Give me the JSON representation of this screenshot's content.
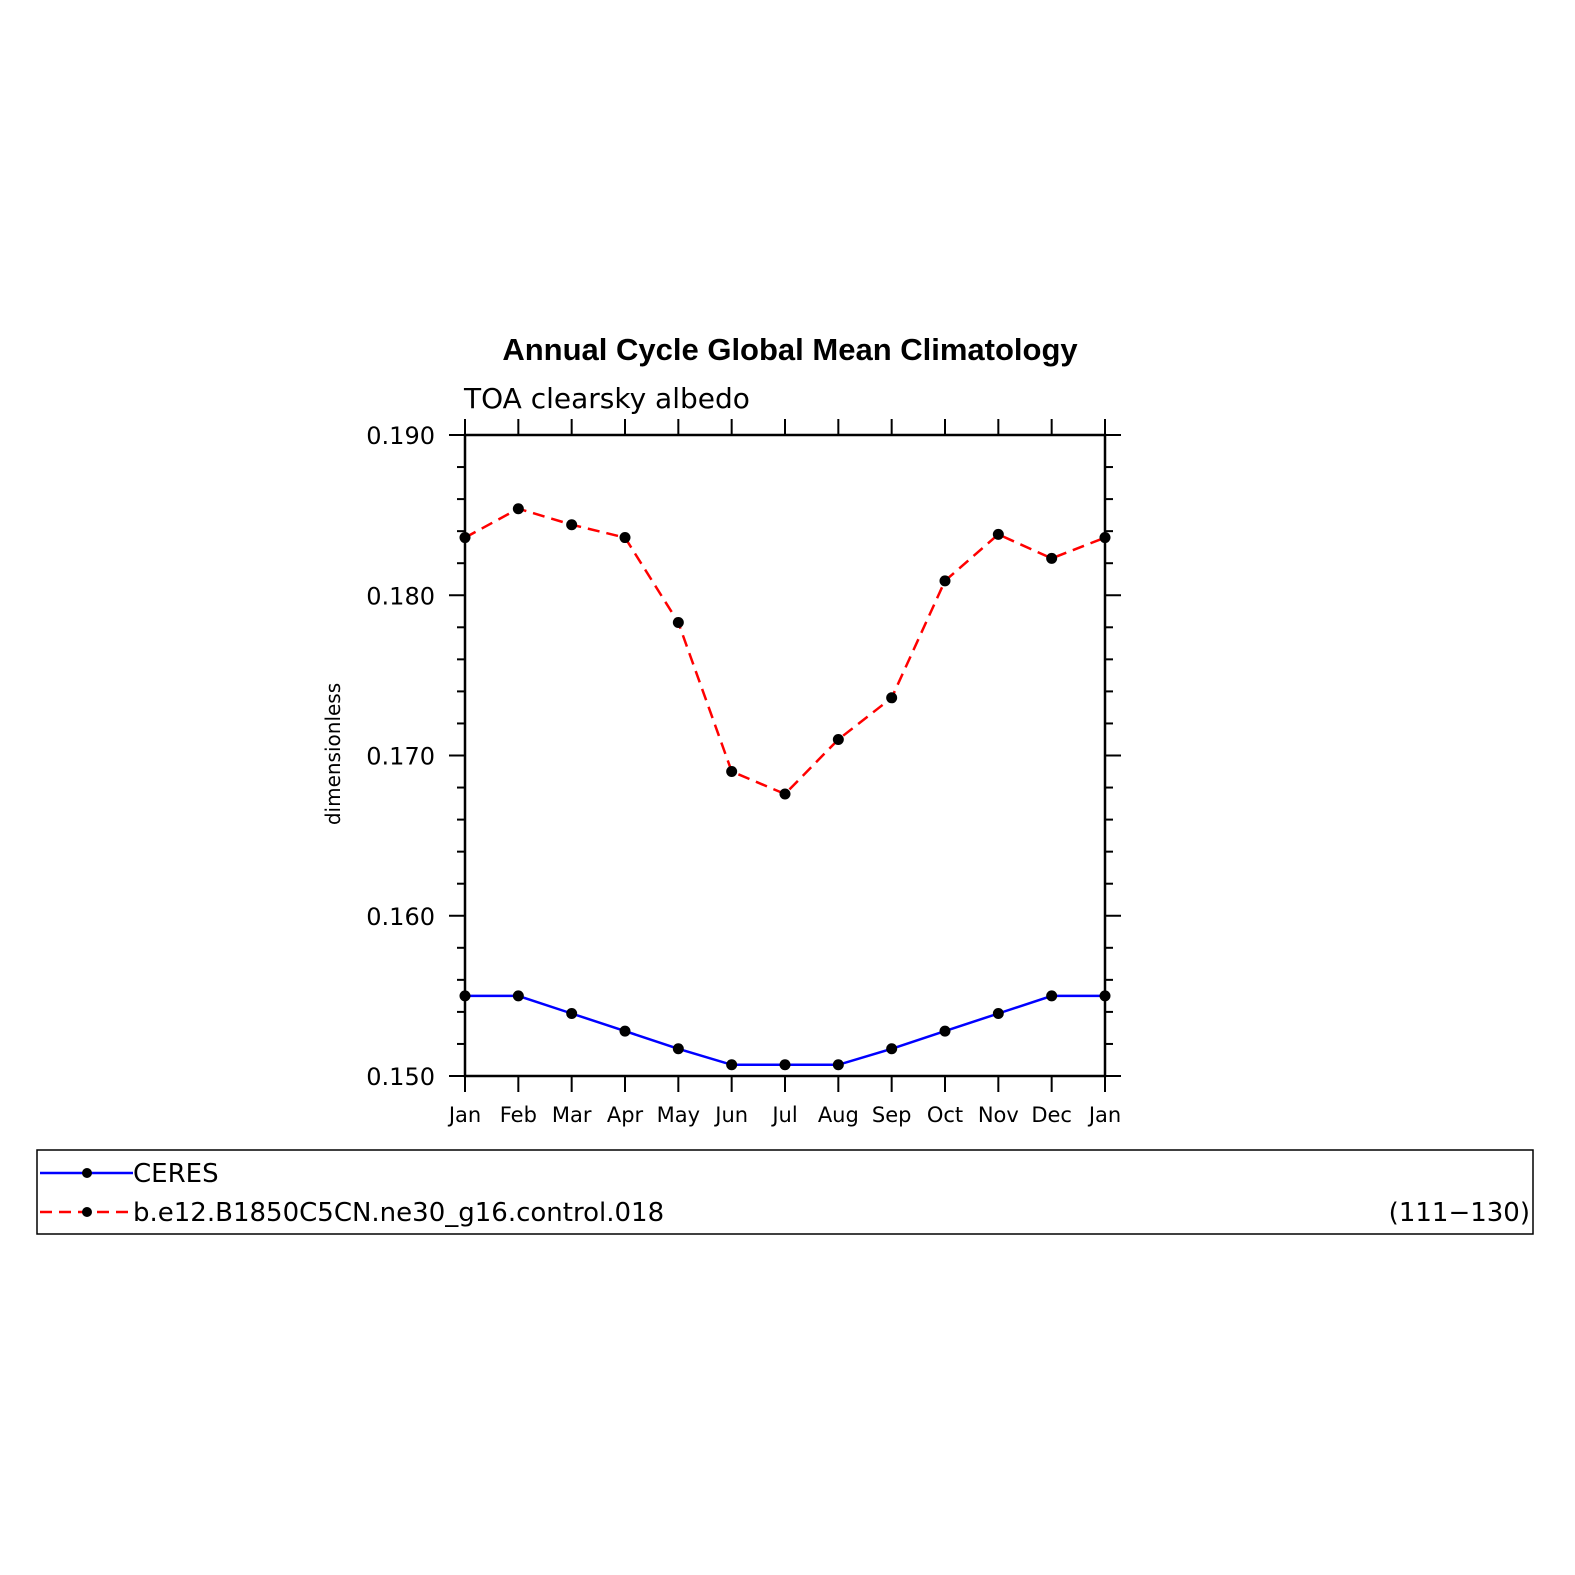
{
  "chart_data": {
    "type": "line",
    "title": "Annual Cycle Global Mean Climatology",
    "subtitle": "TOA clearsky albedo",
    "xlabel": "",
    "ylabel": "dimensionless",
    "categories": [
      "Jan",
      "Feb",
      "Mar",
      "Apr",
      "May",
      "Jun",
      "Jul",
      "Aug",
      "Sep",
      "Oct",
      "Nov",
      "Dec",
      "Jan"
    ],
    "ylim": [
      0.15,
      0.19
    ],
    "yticks": [
      "0.150",
      "0.160",
      "0.170",
      "0.180",
      "0.190"
    ],
    "yticks_values": [
      0.15,
      0.16,
      0.17,
      0.18,
      0.19
    ],
    "grid": false,
    "series": [
      {
        "name": "CERES",
        "color": "#0000ff",
        "dash": "solid",
        "values": [
          0.155,
          0.155,
          0.1539,
          0.1528,
          0.1517,
          0.1507,
          0.1507,
          0.1507,
          0.1517,
          0.1528,
          0.1539,
          0.155,
          0.155
        ]
      },
      {
        "name": "b.e12.B1850C5CN.ne30_g16.control.018",
        "color": "#ff0000",
        "dash": "dashed",
        "years": "(111−130)",
        "values": [
          0.1836,
          0.1854,
          0.1844,
          0.1836,
          0.1783,
          0.169,
          0.1676,
          0.171,
          0.1736,
          0.1809,
          0.1838,
          0.1823,
          0.1836
        ]
      }
    ],
    "legend_position": "bottom"
  }
}
